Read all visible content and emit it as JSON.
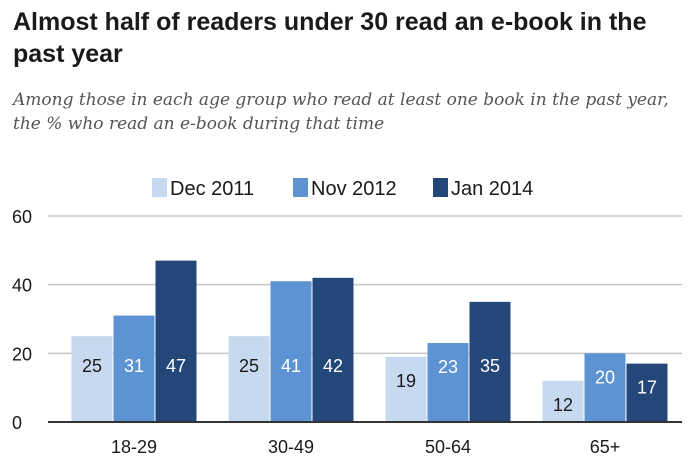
{
  "title": "Almost half of readers under 30 read an e-book in the past year",
  "subtitle": "Among those in each age group who read at least one book in the past year, the % who read an e-book during that time",
  "chart_data": {
    "type": "bar",
    "categories": [
      "18-29",
      "30-49",
      "50-64",
      "65+"
    ],
    "series": [
      {
        "name": "Dec 2011",
        "values": [
          25,
          25,
          19,
          12
        ],
        "color": "#c6d9ef",
        "label_color": "#1a1a1a"
      },
      {
        "name": "Nov 2012",
        "values": [
          31,
          41,
          23,
          20
        ],
        "color": "#5e93d3",
        "label_color": "#ffffff"
      },
      {
        "name": "Jan 2014",
        "values": [
          47,
          42,
          35,
          17
        ],
        "color": "#24477a",
        "label_color": "#ffffff"
      }
    ],
    "ylim": [
      0,
      60
    ],
    "yticks": [
      0,
      20,
      40,
      60
    ],
    "grid": true,
    "legend": "top-center",
    "data_labels": true
  }
}
